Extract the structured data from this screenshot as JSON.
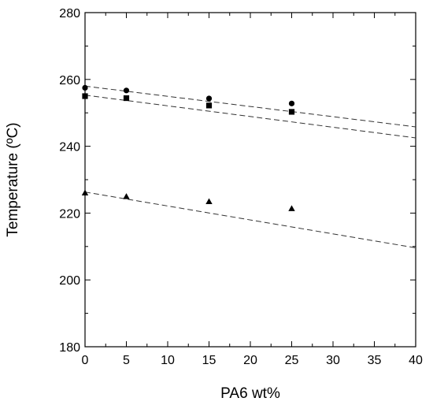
{
  "chart_data": {
    "type": "scatter",
    "title": "",
    "xlabel": "PA6 wt%",
    "ylabel": "Temperature (ºC)",
    "xlim": [
      0,
      40
    ],
    "ylim": [
      180,
      280
    ],
    "xticks": [
      0,
      5,
      10,
      15,
      20,
      25,
      30,
      35,
      40
    ],
    "yticks": [
      180,
      200,
      220,
      240,
      260,
      280
    ],
    "grid": false,
    "legend": "none",
    "series": [
      {
        "marker": "circle",
        "color": "#000000",
        "x": [
          0,
          5,
          15,
          25
        ],
        "y": [
          257.5,
          256.7,
          254.3,
          252.8
        ],
        "fit": {
          "style": "dashed",
          "x": [
            0,
            40
          ],
          "y": [
            258.0,
            245.8
          ]
        }
      },
      {
        "marker": "square",
        "color": "#000000",
        "x": [
          0,
          5,
          15,
          25
        ],
        "y": [
          255.0,
          254.4,
          252.2,
          250.3
        ],
        "fit": {
          "style": "dashed",
          "x": [
            0,
            40
          ],
          "y": [
            255.3,
            242.5
          ]
        }
      },
      {
        "marker": "triangle",
        "color": "#000000",
        "x": [
          0,
          5,
          15,
          25
        ],
        "y": [
          226.0,
          224.9,
          223.4,
          221.3
        ],
        "fit": {
          "style": "dashed",
          "x": [
            0,
            40
          ],
          "y": [
            226.3,
            209.6
          ]
        }
      }
    ]
  }
}
